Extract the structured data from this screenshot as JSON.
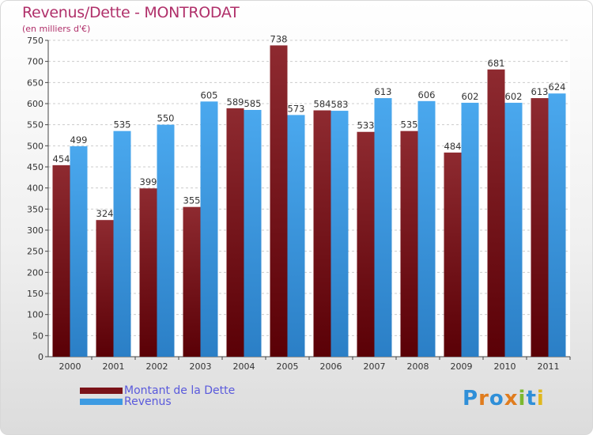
{
  "title": "Revenus/Dette - MONTRODAT",
  "subtitle": "(en milliers d'€)",
  "chart_data": {
    "type": "bar",
    "categories": [
      "2000",
      "2001",
      "2002",
      "2003",
      "2004",
      "2005",
      "2006",
      "2007",
      "2008",
      "2009",
      "2010",
      "2011"
    ],
    "series": [
      {
        "name": "Montant de la Dette",
        "values": [
          454,
          324,
          399,
          355,
          589,
          738,
          584,
          533,
          535,
          484,
          681,
          613
        ]
      },
      {
        "name": "Revenus",
        "values": [
          499,
          535,
          550,
          605,
          585,
          573,
          583,
          613,
          606,
          602,
          602,
          624
        ]
      }
    ],
    "yticks": [
      0,
      50,
      100,
      150,
      200,
      250,
      300,
      350,
      400,
      450,
      500,
      550,
      600,
      650,
      700,
      750
    ],
    "ylim": [
      0,
      750
    ],
    "grid": true,
    "legend_position": "bottom-left"
  },
  "legend": {
    "items": [
      {
        "label": "Montant de la Dette",
        "color": "#7a1218"
      },
      {
        "label": "Revenus",
        "color": "#3d9be2"
      }
    ]
  },
  "logo": {
    "text": "Proxiti"
  }
}
